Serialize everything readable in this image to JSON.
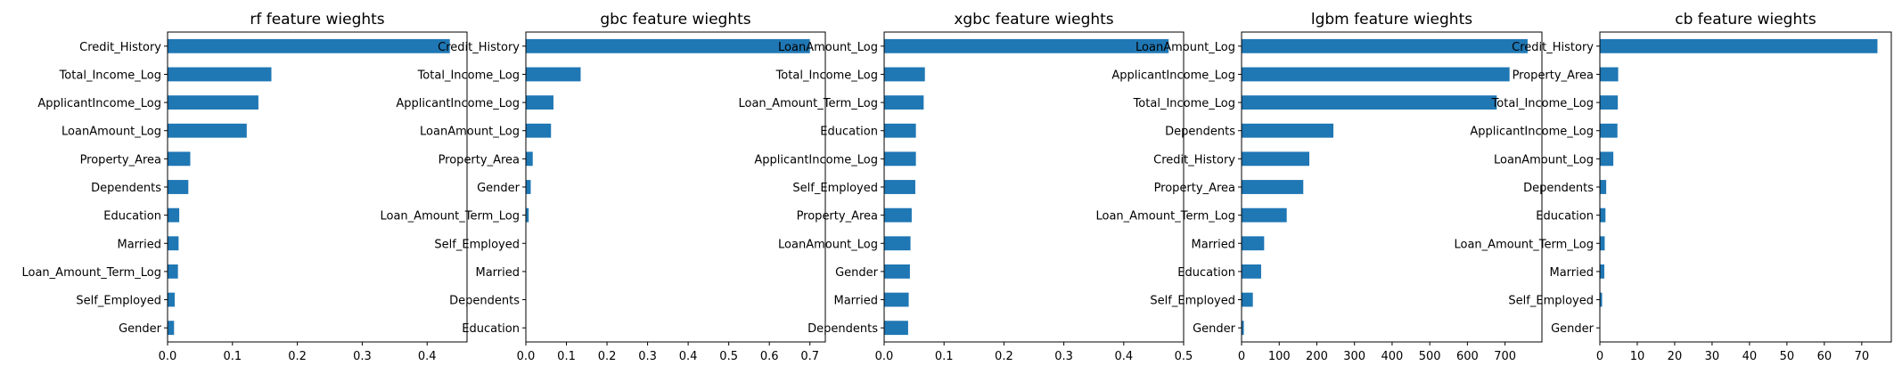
{
  "figure": {
    "background": "#ffffff",
    "bar_color": "#1f77b4"
  },
  "chart_data": [
    {
      "type": "bar",
      "orientation": "horizontal",
      "title": "rf feature wieghts",
      "categories": [
        "Credit_History",
        "Total_Income_Log",
        "ApplicantIncome_Log",
        "LoanAmount_Log",
        "Property_Area",
        "Dependents",
        "Education",
        "Married",
        "Loan_Amount_Term_Log",
        "Self_Employed",
        "Gender"
      ],
      "values": [
        0.435,
        0.16,
        0.14,
        0.122,
        0.035,
        0.032,
        0.018,
        0.017,
        0.016,
        0.011,
        0.01
      ],
      "xlim": [
        0,
        0.4615
      ],
      "xticks": [
        0.0,
        0.1,
        0.2,
        0.3,
        0.4
      ],
      "xtick_labels": [
        "0.0",
        "0.1",
        "0.2",
        "0.3",
        "0.4"
      ]
    },
    {
      "type": "bar",
      "orientation": "horizontal",
      "title": "gbc feature wieghts",
      "categories": [
        "Credit_History",
        "Total_Income_Log",
        "ApplicantIncome_Log",
        "LoanAmount_Log",
        "Property_Area",
        "Gender",
        "Loan_Amount_Term_Log",
        "Self_Employed",
        "Married",
        "Dependents",
        "Education"
      ],
      "values": [
        0.7,
        0.135,
        0.068,
        0.062,
        0.017,
        0.012,
        0.007,
        0.0,
        0.0,
        0.0,
        0.0
      ],
      "xlim": [
        0,
        0.738
      ],
      "xticks": [
        0.0,
        0.1,
        0.2,
        0.3,
        0.4,
        0.5,
        0.6,
        0.7
      ],
      "xtick_labels": [
        "0.0",
        "0.1",
        "0.2",
        "0.3",
        "0.4",
        "0.5",
        "0.6",
        "0.7"
      ]
    },
    {
      "type": "bar",
      "orientation": "horizontal",
      "title": "xgbc feature wieghts",
      "categories": [
        "LoanAmount_Log",
        "Total_Income_Log",
        "Loan_Amount_Term_Log",
        "Education",
        "ApplicantIncome_Log",
        "Self_Employed",
        "Property_Area",
        "LoanAmount_Log",
        "Gender",
        "Married",
        "Dependents"
      ],
      "values": [
        0.475,
        0.068,
        0.066,
        0.053,
        0.053,
        0.052,
        0.046,
        0.044,
        0.043,
        0.041,
        0.04
      ],
      "xlim": [
        0,
        0.5
      ],
      "xticks": [
        0.0,
        0.1,
        0.2,
        0.3,
        0.4,
        0.5
      ],
      "xtick_labels": [
        "0.0",
        "0.1",
        "0.2",
        "0.3",
        "0.4",
        "0.5"
      ]
    },
    {
      "type": "bar",
      "orientation": "horizontal",
      "title": "lgbm feature wieghts",
      "categories": [
        "LoanAmount_Log",
        "ApplicantIncome_Log",
        "Total_Income_Log",
        "Dependents",
        "Credit_History",
        "Property_Area",
        "Loan_Amount_Term_Log",
        "Married",
        "Education",
        "Self_Employed",
        "Gender"
      ],
      "values": [
        760,
        712,
        678,
        244,
        180,
        164,
        120,
        60,
        52,
        30,
        6
      ],
      "xlim": [
        0,
        798
      ],
      "xticks": [
        0,
        100,
        200,
        300,
        400,
        500,
        600,
        700
      ],
      "xtick_labels": [
        "0",
        "100",
        "200",
        "300",
        "400",
        "500",
        "600",
        "700"
      ]
    },
    {
      "type": "bar",
      "orientation": "horizontal",
      "title": "cb feature wieghts",
      "categories": [
        "Credit_History",
        "Property_Area",
        "Total_Income_Log",
        "ApplicantIncome_Log",
        "LoanAmount_Log",
        "Dependents",
        "Education",
        "Loan_Amount_Term_Log",
        "Married",
        "Self_Employed",
        "Gender"
      ],
      "values": [
        74.2,
        4.9,
        4.8,
        4.7,
        3.6,
        1.7,
        1.5,
        1.3,
        1.2,
        0.6,
        0.0
      ],
      "xlim": [
        0,
        77.9
      ],
      "xticks": [
        0,
        10,
        20,
        30,
        40,
        50,
        60,
        70
      ],
      "xtick_labels": [
        "0",
        "10",
        "20",
        "30",
        "40",
        "50",
        "60",
        "70"
      ]
    }
  ]
}
